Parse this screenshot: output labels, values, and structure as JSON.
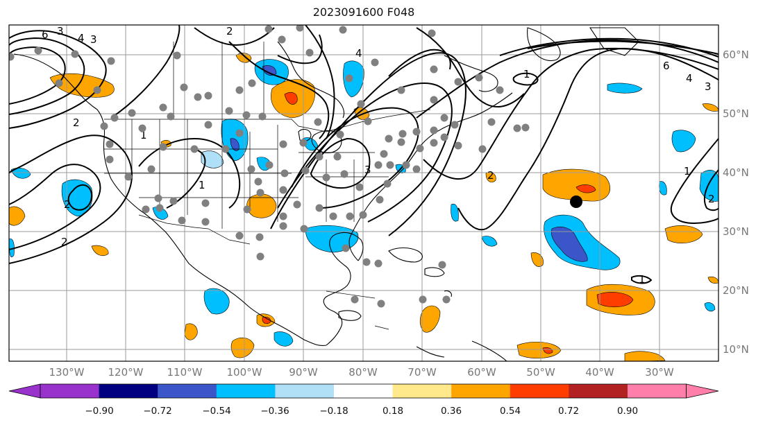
{
  "title": "2023091600 F048",
  "lon_labels": [
    "130°W",
    "120°W",
    "110°W",
    "100°W",
    "90°W",
    "80°W",
    "70°W",
    "60°W",
    "50°W",
    "40°W",
    "30°W"
  ],
  "lat_labels": [
    "60°N",
    "50°N",
    "40°N",
    "30°N",
    "20°N",
    "10°N"
  ],
  "colorbar": {
    "colors": [
      "#9932cc",
      "#000080",
      "#3a56c8",
      "#00bfff",
      "#afe0f8",
      "#ffffff",
      "#ffe98a",
      "#ffa500",
      "#ff3d00",
      "#b22222",
      "#ff7faa"
    ],
    "tick_labels": [
      "−0.90",
      "−0.72",
      "−0.54",
      "−0.36",
      "−0.18",
      "0.18",
      "0.36",
      "0.54",
      "0.72",
      "0.90"
    ]
  },
  "contour_labels": [
    "6",
    "3",
    "4",
    "3",
    "2",
    "2",
    "1",
    "2",
    "1",
    "6",
    "4",
    "3",
    "1",
    "1",
    "2",
    "1",
    "2",
    "4",
    "3",
    "2"
  ],
  "storm_marker": "storm-center"
}
